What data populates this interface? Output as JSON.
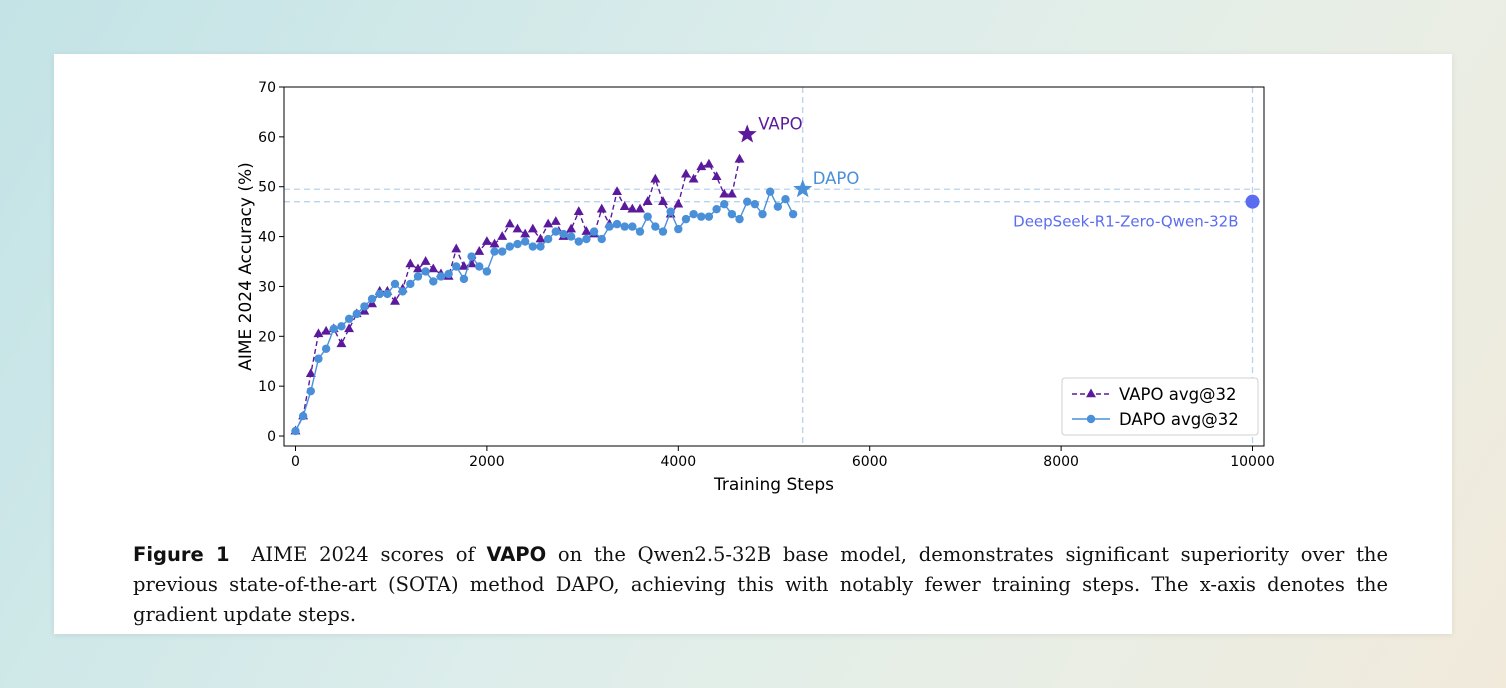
{
  "chart_data": {
    "type": "line",
    "xlabel": "Training Steps",
    "ylabel": "AIME 2024 Accuracy (%)",
    "xlim": [
      -120,
      10120
    ],
    "ylim": [
      -2,
      70
    ],
    "xticks": [
      0,
      2000,
      4000,
      6000,
      8000,
      10000
    ],
    "yticks": [
      0,
      10,
      20,
      30,
      40,
      50,
      60,
      70
    ],
    "legend_position": "bottom-right",
    "series": [
      {
        "name": "VAPO avg@32",
        "color": "#5b1a9c",
        "marker": "triangle",
        "dashed": true,
        "x": [
          0,
          80,
          160,
          240,
          320,
          400,
          480,
          560,
          640,
          720,
          800,
          880,
          960,
          1040,
          1120,
          1200,
          1280,
          1360,
          1440,
          1520,
          1600,
          1680,
          1760,
          1840,
          1920,
          2000,
          2080,
          2160,
          2240,
          2320,
          2400,
          2480,
          2560,
          2640,
          2720,
          2800,
          2880,
          2960,
          3040,
          3120,
          3200,
          3280,
          3360,
          3440,
          3520,
          3600,
          3680,
          3760,
          3840,
          3920,
          4000,
          4080,
          4160,
          4240,
          4320,
          4400,
          4480,
          4560,
          4640
        ],
        "y": [
          1,
          4,
          12.5,
          20.5,
          21,
          21.5,
          18.5,
          21.5,
          24.5,
          25,
          26.5,
          29,
          29,
          27,
          29.5,
          34.5,
          33.5,
          35,
          33.5,
          32.5,
          32,
          37.5,
          34,
          34.5,
          37,
          39,
          38.5,
          40,
          42.5,
          41.5,
          40.5,
          41.5,
          39.5,
          42.5,
          43,
          40,
          41.5,
          45,
          41,
          40.5,
          45.5,
          42.5,
          49,
          46,
          45.5,
          45.5,
          47,
          51.5,
          47,
          44.5,
          46.5,
          52.5,
          51.5,
          54,
          54.5,
          52,
          48.5,
          48.5,
          55.5
        ]
      },
      {
        "name": "DAPO avg@32",
        "color": "#4a90d9",
        "marker": "circle",
        "dashed": false,
        "x": [
          0,
          80,
          160,
          240,
          320,
          400,
          480,
          560,
          640,
          720,
          800,
          880,
          960,
          1040,
          1120,
          1200,
          1280,
          1360,
          1440,
          1520,
          1600,
          1680,
          1760,
          1840,
          1920,
          2000,
          2080,
          2160,
          2240,
          2320,
          2400,
          2480,
          2560,
          2640,
          2720,
          2800,
          2880,
          2960,
          3040,
          3120,
          3200,
          3280,
          3360,
          3440,
          3520,
          3600,
          3680,
          3760,
          3840,
          3920,
          4000,
          4080,
          4160,
          4240,
          4320,
          4400,
          4480,
          4560,
          4640,
          4720,
          4800,
          4880,
          4960,
          5040,
          5120,
          5200
        ],
        "y": [
          1,
          4,
          9,
          15.5,
          17.5,
          21.5,
          22,
          23.5,
          24.5,
          26,
          27.5,
          28.5,
          28.5,
          30.5,
          29,
          30.5,
          32,
          33,
          31,
          32,
          32.5,
          34,
          31.5,
          36,
          34,
          33,
          37,
          37,
          38,
          38.5,
          39,
          38,
          38,
          39.5,
          41,
          40.5,
          40,
          39,
          39.5,
          41,
          39.5,
          42,
          42.5,
          42,
          42,
          41,
          44,
          42,
          41,
          45,
          41.5,
          43.5,
          44.5,
          44,
          44,
          45.5,
          46.5,
          44.5,
          43.5,
          47,
          46.5,
          44.5,
          49,
          46,
          47.5,
          44.5
        ]
      }
    ],
    "highlights": [
      {
        "name": "VAPO",
        "x": 4720,
        "y": 60.5,
        "color": "#5b1a9c",
        "marker": "star"
      },
      {
        "name": "DAPO",
        "x": 5300,
        "y": 49.5,
        "color": "#4a90d9",
        "marker": "star"
      },
      {
        "name": "DeepSeek-R1-Zero-Qwen-32B",
        "x": 10000,
        "y": 47,
        "color": "#5b6cf0",
        "marker": "circle"
      }
    ],
    "reference_lines": {
      "horizontal": [
        49.5,
        47
      ],
      "vertical": [
        5300,
        10000
      ],
      "color": "#b8d3ef"
    }
  },
  "caption": {
    "label": "Figure 1",
    "prefix": "AIME 2024 scores of",
    "method": "VAPO",
    "text": "on the Qwen2.5-32B base model, demonstrates significant superiority over the previous state-of-the-art (SOTA) method DAPO, achieving this with notably fewer training steps. The x-axis denotes the gradient update steps."
  }
}
